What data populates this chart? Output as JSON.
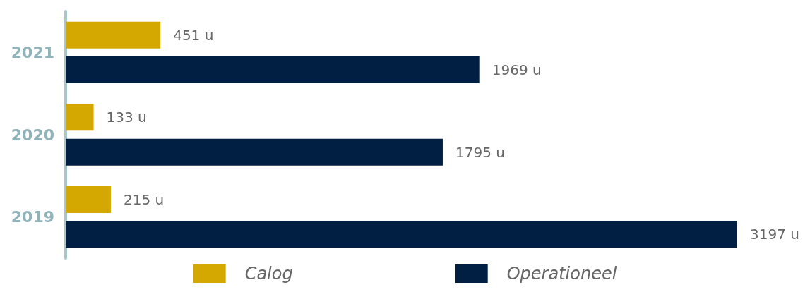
{
  "chart_data": {
    "type": "bar",
    "orientation": "horizontal",
    "categories": [
      "2021",
      "2020",
      "2019"
    ],
    "series": [
      {
        "name": "Calog",
        "color": "#d4a800",
        "values": [
          451,
          133,
          215
        ],
        "value_labels": [
          "451 u",
          "133 u",
          "215 u"
        ]
      },
      {
        "name": "Operationeel",
        "color": "#001f42",
        "values": [
          1969,
          1795,
          3197
        ],
        "value_labels": [
          "1969 u",
          "1795 u",
          "3197 u"
        ]
      }
    ],
    "legend": "bottom"
  }
}
